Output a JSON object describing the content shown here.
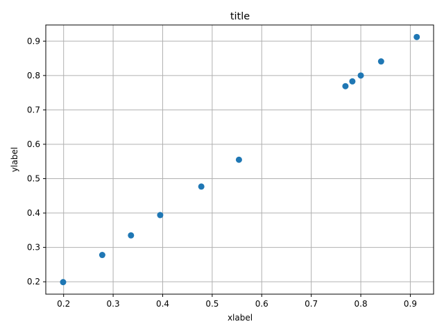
{
  "chart_data": {
    "type": "scatter",
    "title": "title",
    "xlabel": "xlabel",
    "ylabel": "ylabel",
    "xlim": [
      0.164,
      0.947
    ],
    "ylim": [
      0.164,
      0.947
    ],
    "x_ticks": [
      0.2,
      0.3,
      0.4,
      0.5,
      0.6,
      0.7,
      0.8,
      0.9
    ],
    "x_tick_labels": [
      "0.2",
      "0.3",
      "0.4",
      "0.5",
      "0.6",
      "0.7",
      "0.8",
      "0.9"
    ],
    "y_ticks": [
      0.2,
      0.3,
      0.4,
      0.5,
      0.6,
      0.7,
      0.8,
      0.9
    ],
    "y_tick_labels": [
      "0.2",
      "0.3",
      "0.4",
      "0.5",
      "0.6",
      "0.7",
      "0.8",
      "0.9"
    ],
    "grid": true,
    "marker_color": "#1f77b4",
    "points": [
      {
        "x": 0.199,
        "y": 0.199
      },
      {
        "x": 0.278,
        "y": 0.278
      },
      {
        "x": 0.336,
        "y": 0.335
      },
      {
        "x": 0.395,
        "y": 0.394
      },
      {
        "x": 0.478,
        "y": 0.477
      },
      {
        "x": 0.554,
        "y": 0.555
      },
      {
        "x": 0.769,
        "y": 0.769
      },
      {
        "x": 0.783,
        "y": 0.783
      },
      {
        "x": 0.8,
        "y": 0.8
      },
      {
        "x": 0.841,
        "y": 0.841
      },
      {
        "x": 0.913,
        "y": 0.912
      }
    ]
  }
}
